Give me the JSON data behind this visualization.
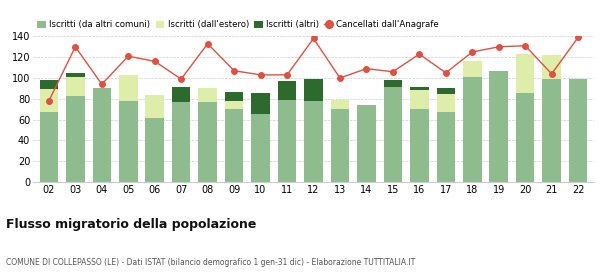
{
  "years": [
    "02",
    "03",
    "04",
    "05",
    "06",
    "07",
    "08",
    "09",
    "10",
    "11",
    "12",
    "13",
    "14",
    "15",
    "16",
    "17",
    "18",
    "19",
    "20",
    "21",
    "22"
  ],
  "iscritti_altri_comuni": [
    67,
    83,
    90,
    78,
    62,
    77,
    77,
    70,
    65,
    79,
    78,
    70,
    74,
    91,
    70,
    67,
    101,
    107,
    86,
    99,
    99
  ],
  "iscritti_estero": [
    22,
    18,
    0,
    25,
    22,
    0,
    13,
    8,
    0,
    0,
    0,
    9,
    0,
    0,
    18,
    18,
    15,
    0,
    37,
    23,
    0
  ],
  "iscritti_altri": [
    9,
    4,
    0,
    0,
    0,
    14,
    0,
    9,
    21,
    18,
    21,
    0,
    0,
    7,
    3,
    5,
    0,
    0,
    0,
    0,
    0
  ],
  "cancellati": [
    78,
    130,
    94,
    121,
    116,
    99,
    133,
    107,
    103,
    103,
    138,
    100,
    109,
    106,
    123,
    105,
    125,
    130,
    131,
    104,
    139
  ],
  "color_altri_comuni": "#8fbc8f",
  "color_estero": "#deedaa",
  "color_altri": "#2d6a2d",
  "color_cancellati": "#e05040",
  "ylim": [
    0,
    140
  ],
  "yticks": [
    0,
    20,
    40,
    60,
    80,
    100,
    120,
    140
  ],
  "title": "Flusso migratorio della popolazione",
  "subtitle": "COMUNE DI COLLEPASSO (LE) - Dati ISTAT (bilancio demografico 1 gen-31 dic) - Elaborazione TUTTITALIA.IT",
  "legend_labels": [
    "Iscritti (da altri comuni)",
    "Iscritti (dall'estero)",
    "Iscritti (altri)",
    "Cancellati dall'Anagrafe"
  ],
  "bg_color": "#ffffff",
  "grid_color": "#cccccc"
}
